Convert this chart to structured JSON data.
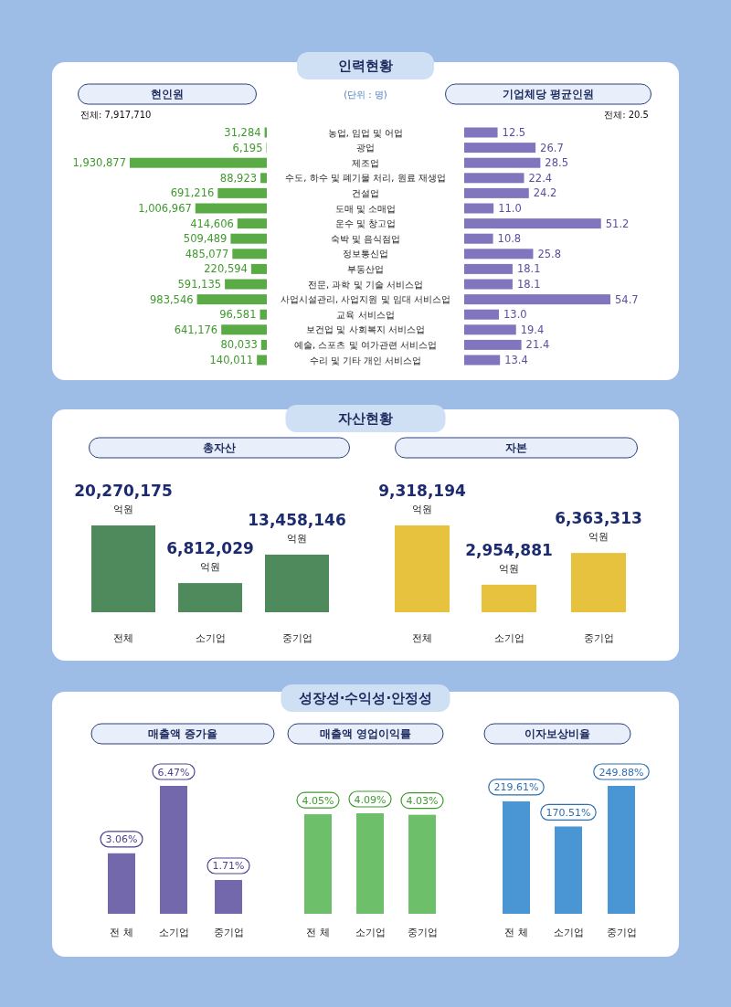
{
  "chart_data": [
    {
      "type": "bar",
      "orientation": "horizontal",
      "title": "현인원",
      "tick_labels": "y",
      "color": "#5aab46",
      "categories": [
        "농업, 임업 및 어업",
        "광업",
        "제조업",
        "수도, 하수 및 폐기물 처리, 원료 재생업",
        "건설업",
        "도매 및 소매업",
        "운수 및 창고업",
        "숙박 및 음식점업",
        "정보통신업",
        "부동산업",
        "전문, 과학 및 기술 서비스업",
        "사업시설관리, 사업지원 및 임대 서비스업",
        "교육 서비스업",
        "보건업 및 사회복지 서비스업",
        "예술, 스포츠 및 여가관련 서비스업",
        "수리 및 기타 개인 서비스업"
      ],
      "values": [
        31284,
        6195,
        1930877,
        88923,
        691216,
        1006967,
        414606,
        509489,
        485077,
        220594,
        591135,
        983546,
        96581,
        641176,
        80033,
        140011
      ],
      "value_labels": [
        "31,284",
        "6,195",
        "1,930,877",
        "88,923",
        "691,216",
        "1,006,967",
        "414,606",
        "509,489",
        "485,077",
        "220,594",
        "591,135",
        "983,546",
        "96,581",
        "641,176",
        "80,033",
        "140,011"
      ],
      "annotations": [
        "인력현황",
        "(단위 : 명)",
        "전체: 7,917,710"
      ]
    },
    {
      "type": "bar",
      "orientation": "horizontal",
      "title": "기업체당 평균인원",
      "tick_labels": false,
      "color": "#8176bd",
      "categories": [
        "농업, 임업 및 어업",
        "광업",
        "제조업",
        "수도, 하수 및 폐기물 처리, 원료 재생업",
        "건설업",
        "도매 및 소매업",
        "운수 및 창고업",
        "숙박 및 음식점업",
        "정보통신업",
        "부동산업",
        "전문, 과학 및 기술 서비스업",
        "사업시설관리, 사업지원 및 임대 서비스업",
        "교육 서비스업",
        "보건업 및 사회복지 서비스업",
        "예술, 스포츠 및 여가관련 서비스업",
        "수리 및 기타 개인 서비스업"
      ],
      "values": [
        12.5,
        26.7,
        28.5,
        22.4,
        24.2,
        11.0,
        51.2,
        10.8,
        25.8,
        18.1,
        18.1,
        54.7,
        13.0,
        19.4,
        21.4,
        13.4
      ],
      "value_labels": [
        "12.5",
        "26.7",
        "28.5",
        "22.4",
        "24.2",
        "11.0",
        "51.2",
        "10.8",
        "25.8",
        "18.1",
        "18.1",
        "54.7",
        "13.0",
        "19.4",
        "21.4",
        "13.4"
      ],
      "annotations": [
        "전체: 20.5"
      ]
    },
    {
      "type": "bar",
      "title": "총자산",
      "color": "#4f8a5c",
      "categories": [
        "전체",
        "소기업",
        "중기업"
      ],
      "values": [
        20270175,
        6812029,
        13458146
      ],
      "value_labels": [
        "20,270,175 억원",
        "6,812,029 억원",
        "13,458,146 억원"
      ],
      "annotations": [
        "자산현황"
      ]
    },
    {
      "type": "bar",
      "title": "자본",
      "color": "#e6c23e",
      "categories": [
        "전체",
        "소기업",
        "중기업"
      ],
      "values": [
        9318194,
        2954881,
        6363313
      ],
      "value_labels": [
        "9,318,194 억원",
        "2,954,881 억원",
        "6,363,313 억원"
      ]
    },
    {
      "type": "bar",
      "title": "매출액 증가율",
      "color": "#7468ad",
      "categories": [
        "전 체",
        "소기업",
        "중기업"
      ],
      "values": [
        3.06,
        6.47,
        1.71
      ],
      "value_labels": [
        "3.06%",
        "6.47%",
        "1.71%"
      ],
      "annotations": [
        "성장성·수익성·안정성"
      ]
    },
    {
      "type": "bar",
      "title": "매출액 영업이익률",
      "color": "#6dbf69",
      "categories": [
        "전 체",
        "소기업",
        "중기업"
      ],
      "values": [
        4.05,
        4.09,
        4.03
      ],
      "value_labels": [
        "4.05%",
        "4.09%",
        "4.03%"
      ]
    },
    {
      "type": "bar",
      "title": "이자보상비율",
      "color": "#4a95d4",
      "categories": [
        "전 체",
        "소기업",
        "중기업"
      ],
      "values": [
        219.61,
        170.51,
        249.88
      ],
      "value_labels": [
        "219.61%",
        "170.51%",
        "249.88%"
      ]
    }
  ]
}
